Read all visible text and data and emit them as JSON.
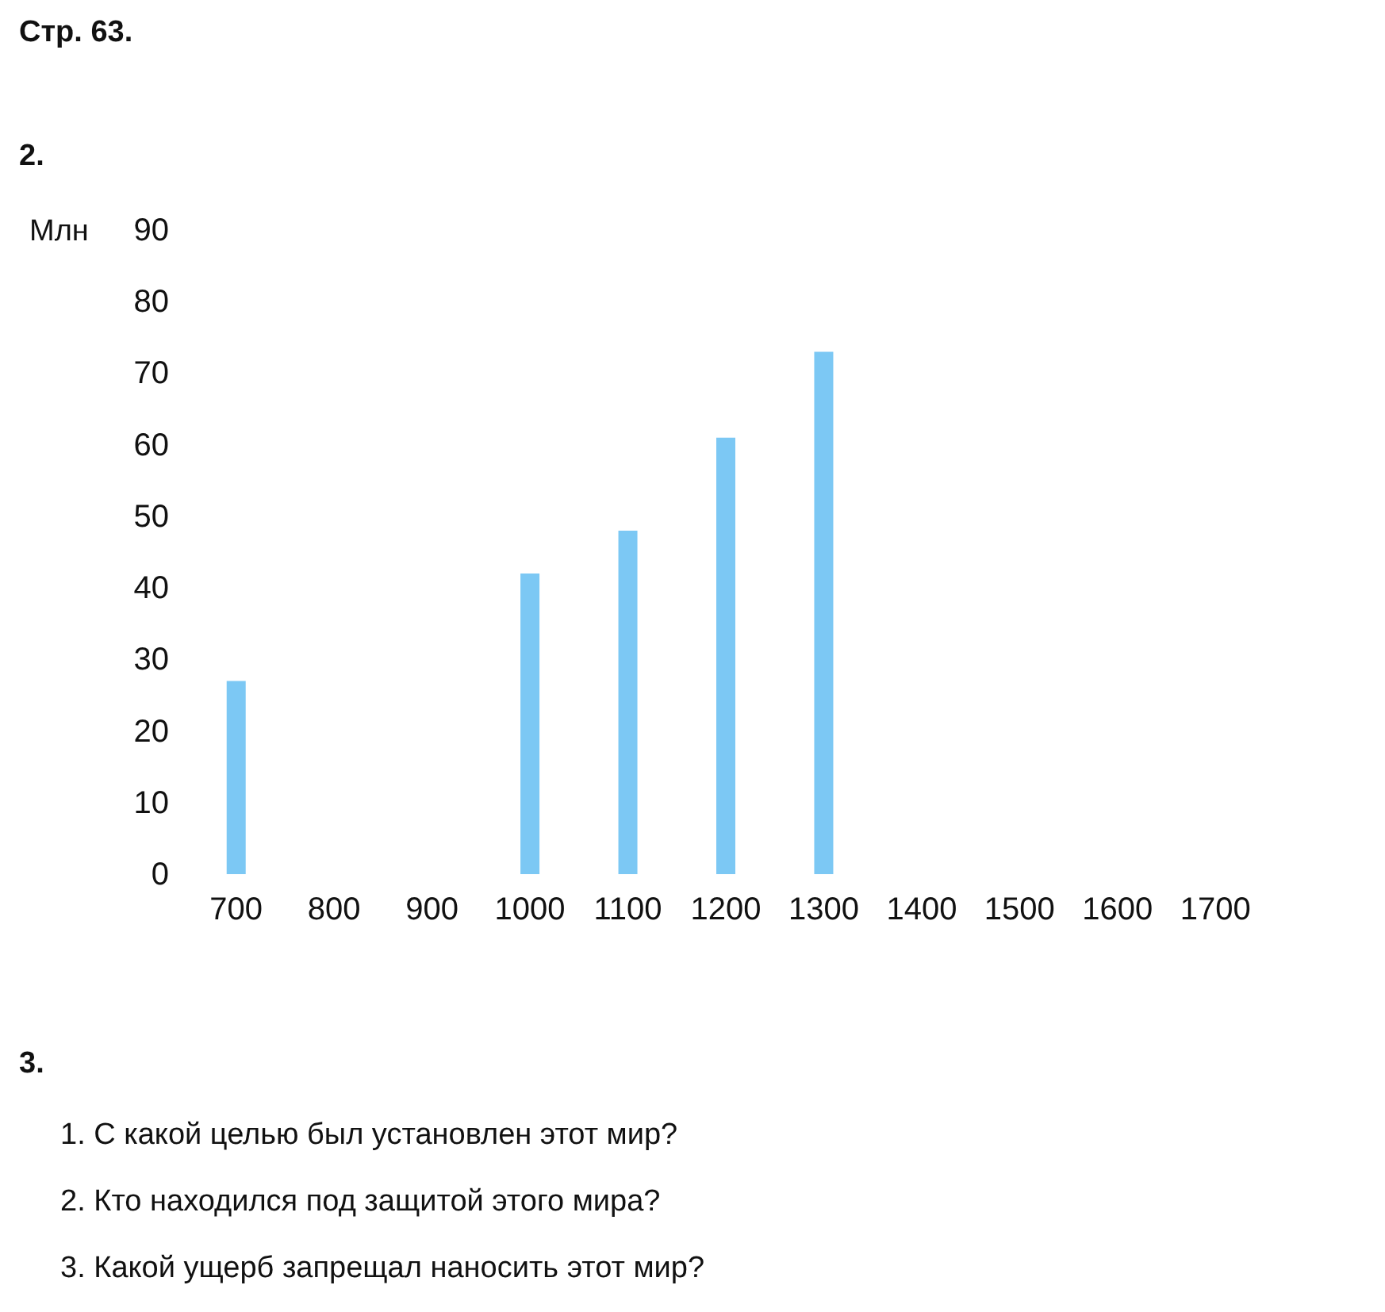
{
  "chart_data": {
    "type": "bar",
    "title": "Стр. 63.",
    "ylabel": "Млн",
    "categories": [
      "700",
      "800",
      "900",
      "1000",
      "1100",
      "1200",
      "1300",
      "1400",
      "1500",
      "1600",
      "1700"
    ],
    "values": [
      27,
      null,
      null,
      42,
      48,
      61,
      73,
      null,
      null,
      null,
      null
    ],
    "color": "#7cc8f4",
    "ylim": [
      0,
      90
    ],
    "yticks": [
      0,
      10,
      20,
      30,
      40,
      50,
      60,
      70,
      80,
      90
    ],
    "grid": false,
    "annotations": [
      "2.",
      "3.",
      "1. С какой целью был установлен этот мир?",
      "2. Кто находился под защитой этого мира?",
      "3. Какой ущерб запрещал наносить этот мир?"
    ]
  }
}
